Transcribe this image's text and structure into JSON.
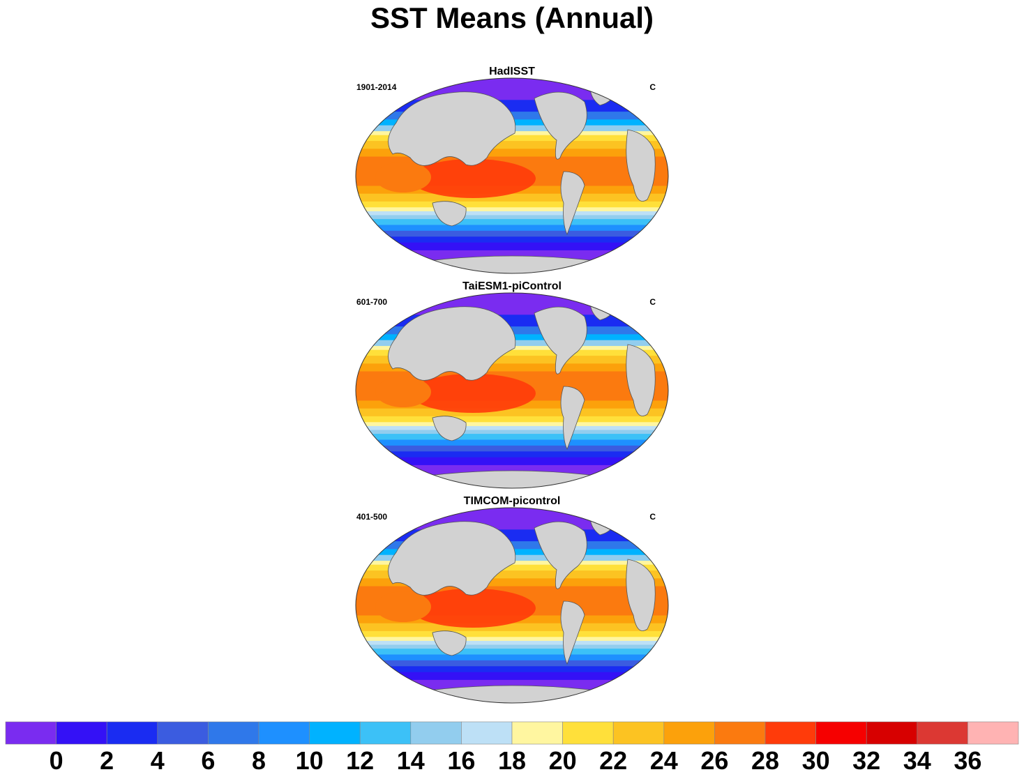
{
  "title": "SST Means (Annual)",
  "panels": [
    {
      "title": "HadISST",
      "left_label": "1901-2014",
      "right_label": "C"
    },
    {
      "title": "TaiESM1-piControl",
      "left_label": "601-700",
      "right_label": "C"
    },
    {
      "title": "TIMCOM-picontrol",
      "left_label": "401-500",
      "right_label": "C"
    }
  ],
  "colorbar": {
    "colors": [
      "#7a2cf0",
      "#3411f6",
      "#1a2cf2",
      "#3b5ce0",
      "#2f78ea",
      "#1e90ff",
      "#00b2ff",
      "#3cc1f7",
      "#92cdee",
      "#bde0f6",
      "#fff6a0",
      "#ffe03a",
      "#fcc322",
      "#fca10b",
      "#fb7a0f",
      "#ff3b0a",
      "#f60000",
      "#d70000",
      "#dc3833",
      "#ffb3b3"
    ],
    "labels": [
      "0",
      "2",
      "4",
      "6",
      "8",
      "10",
      "12",
      "14",
      "16",
      "18",
      "20",
      "22",
      "24",
      "26",
      "28",
      "30",
      "32",
      "34",
      "36"
    ]
  },
  "land_color": "#d2d2d2"
}
